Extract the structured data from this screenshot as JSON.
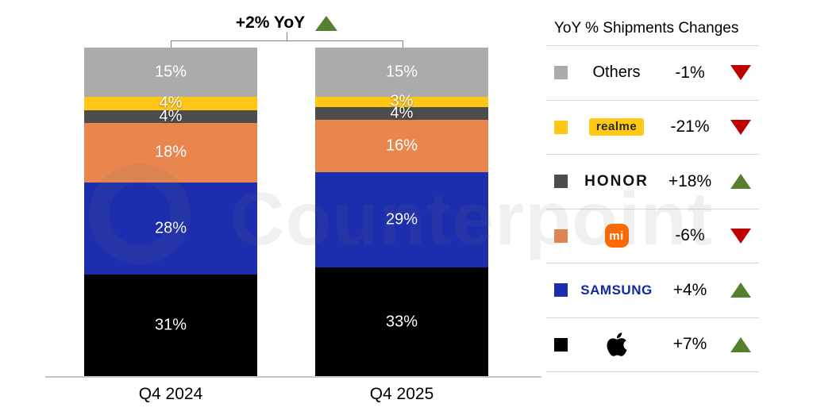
{
  "annotation": {
    "label": "+2% YoY",
    "direction": "up"
  },
  "watermark": {
    "text": "Counterpoint"
  },
  "legend": {
    "title": "YoY % Shipments Changes",
    "rows": [
      {
        "name": "Others",
        "label": "Others",
        "style": "plain",
        "swatch": "#ababab",
        "change": "-1%",
        "direction": "down"
      },
      {
        "name": "realme",
        "label": "realme",
        "style": "realme-badge",
        "swatch": "#ffc615",
        "change": "-21%",
        "direction": "down"
      },
      {
        "name": "HONOR",
        "label": "HONOR",
        "style": "honor-text",
        "swatch": "#4d4d4d",
        "change": "+18%",
        "direction": "up"
      },
      {
        "name": "Xiaomi",
        "label": "mi",
        "style": "mi-badge",
        "swatch": "#e8864d",
        "change": "-6%",
        "direction": "down"
      },
      {
        "name": "Samsung",
        "label": "SAMSUNG",
        "style": "samsung-text",
        "swatch": "#1c2dad",
        "change": "+4%",
        "direction": "up"
      },
      {
        "name": "Apple",
        "label": "",
        "style": "apple-logo",
        "swatch": "#000000",
        "change": "+7%",
        "direction": "up"
      }
    ]
  },
  "chart_data": {
    "type": "bar",
    "stacked": true,
    "unit": "%",
    "title": "",
    "categories": [
      "Q4 2024",
      "Q4 2025"
    ],
    "series_top_to_bottom": [
      {
        "name": "Others",
        "color": "#ababab",
        "values": [
          15,
          15
        ]
      },
      {
        "name": "realme",
        "color": "#ffc615",
        "values": [
          4,
          3
        ]
      },
      {
        "name": "HONOR",
        "color": "#4d4d4d",
        "values": [
          4,
          4
        ]
      },
      {
        "name": "Xiaomi",
        "color": "#e8864d",
        "values": [
          18,
          16
        ]
      },
      {
        "name": "Samsung",
        "color": "#1c2dad",
        "values": [
          28,
          29
        ]
      },
      {
        "name": "Apple",
        "color": "#000000",
        "values": [
          31,
          33
        ]
      }
    ],
    "total_annotation": "+2% YoY",
    "ylim": [
      0,
      100
    ],
    "grid": false,
    "legend_position": "right"
  },
  "colors": {
    "up_triangle": "#54802f",
    "down_triangle": "#c00000",
    "divider": "#d9d9d9",
    "bracket": "#808080",
    "axis_line": "#c6c6c6",
    "mi_logo_bg": "#ff6900",
    "samsung_text": "#1428a0",
    "realme_badge_bg": "#ffc915"
  }
}
